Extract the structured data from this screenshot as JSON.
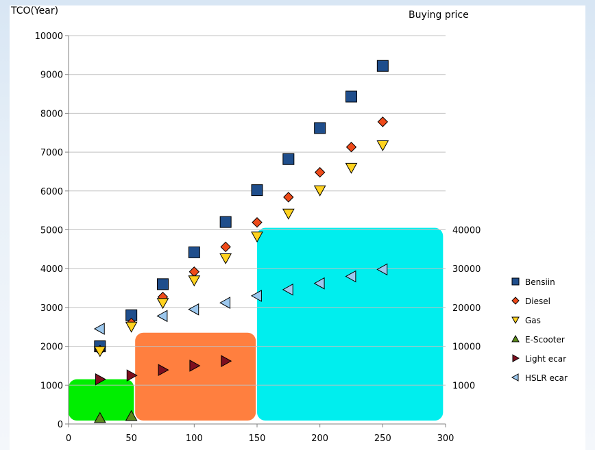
{
  "chart_data": {
    "type": "scatter",
    "y_axis_title": "TCO(Year)",
    "secondary_title": "Buying price",
    "xlim": [
      0,
      300
    ],
    "ylim": [
      0,
      10000
    ],
    "x_ticks": [
      "0",
      "50",
      "100",
      "150",
      "200",
      "250",
      "300"
    ],
    "y_ticks": [
      "0",
      "1000",
      "2000",
      "3000",
      "4000",
      "5000",
      "6000",
      "7000",
      "8000",
      "9000",
      "10000"
    ],
    "grid": "horizontal",
    "buying_price_bands": [
      {
        "label": "1000",
        "x_from": 0,
        "x_to": 52,
        "y_top": 1150,
        "color": "#00ee00"
      },
      {
        "label": "10000",
        "x_from": 53,
        "x_to": 149,
        "y_top": 2350,
        "color": "#ff7f3f"
      },
      {
        "label": "20000",
        "x_from": 150,
        "x_to": 298,
        "y_top": 5050,
        "color": "#00eeee"
      }
    ],
    "secondary_ticks": [
      {
        "label": "40000",
        "y": 5000
      },
      {
        "label": "30000",
        "y": 4000
      },
      {
        "label": "20000",
        "y": 3000
      },
      {
        "label": "10000",
        "y": 2000
      },
      {
        "label": "1000",
        "y": 1000
      }
    ],
    "legend_position": "right",
    "series": [
      {
        "name": "Bensiin",
        "marker": "square",
        "color": "#1f4e8c",
        "x": [
          25,
          50,
          75,
          100,
          125,
          150,
          175,
          200,
          225,
          250
        ],
        "y": [
          2000,
          2800,
          3600,
          4420,
          5200,
          6020,
          6820,
          7620,
          8430,
          9220
        ]
      },
      {
        "name": "Diesel",
        "marker": "diamond",
        "color": "#ee4a1a",
        "x": [
          25,
          50,
          75,
          100,
          125,
          150,
          175,
          200,
          225,
          250
        ],
        "y": [
          1900,
          2600,
          3270,
          3920,
          4560,
          5190,
          5840,
          6480,
          7130,
          7780
        ]
      },
      {
        "name": "Gas",
        "marker": "triangle-down",
        "color": "#ffd21f",
        "x": [
          25,
          50,
          75,
          100,
          125,
          150,
          175,
          200,
          225,
          250
        ],
        "y": [
          1880,
          2510,
          3120,
          3700,
          4270,
          4830,
          5420,
          6020,
          6600,
          7180
        ]
      },
      {
        "name": "E-Scooter",
        "marker": "triangle-up",
        "color": "#5a8a1a",
        "x": [
          25,
          50
        ],
        "y": [
          150,
          200
        ]
      },
      {
        "name": "Light ecar",
        "marker": "triangle-right",
        "color": "#7e0f1f",
        "x": [
          25,
          50,
          75,
          100,
          125
        ],
        "y": [
          1150,
          1250,
          1390,
          1500,
          1620
        ]
      },
      {
        "name": "HSLR ecar",
        "marker": "triangle-left",
        "color": "#9dc8ee",
        "x": [
          25,
          75,
          100,
          125,
          150,
          175,
          200,
          225,
          250
        ],
        "y": [
          2450,
          2780,
          2950,
          3120,
          3300,
          3460,
          3620,
          3800,
          3980
        ]
      }
    ]
  }
}
